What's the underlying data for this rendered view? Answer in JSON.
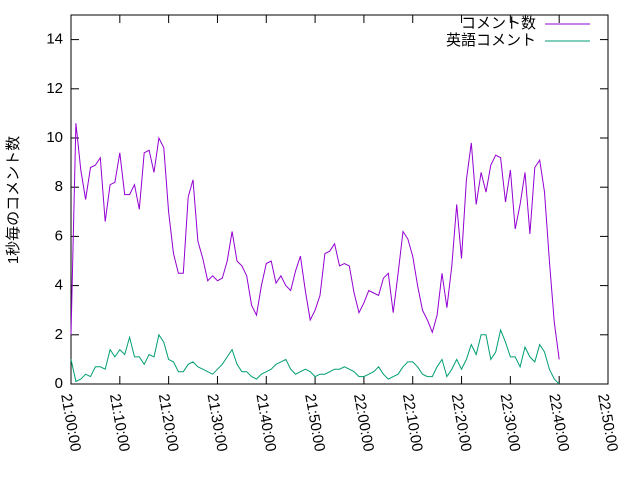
{
  "chart_data": {
    "type": "line",
    "ylabel": "1秒毎のコメント数",
    "x": [
      "21:00:00",
      "21:01:00",
      "21:02:00",
      "21:03:00",
      "21:04:00",
      "21:05:00",
      "21:06:00",
      "21:07:00",
      "21:08:00",
      "21:09:00",
      "21:10:00",
      "21:11:00",
      "21:12:00",
      "21:13:00",
      "21:14:00",
      "21:15:00",
      "21:16:00",
      "21:17:00",
      "21:18:00",
      "21:19:00",
      "21:20:00",
      "21:21:00",
      "21:22:00",
      "21:23:00",
      "21:24:00",
      "21:25:00",
      "21:26:00",
      "21:27:00",
      "21:28:00",
      "21:29:00",
      "21:30:00",
      "21:31:00",
      "21:32:00",
      "21:33:00",
      "21:34:00",
      "21:35:00",
      "21:36:00",
      "21:37:00",
      "21:38:00",
      "21:39:00",
      "21:40:00",
      "21:41:00",
      "21:42:00",
      "21:43:00",
      "21:44:00",
      "21:45:00",
      "21:46:00",
      "21:47:00",
      "21:48:00",
      "21:49:00",
      "21:50:00",
      "21:51:00",
      "21:52:00",
      "21:53:00",
      "21:54:00",
      "21:55:00",
      "21:56:00",
      "21:57:00",
      "21:58:00",
      "21:59:00",
      "22:00:00",
      "22:01:00",
      "22:02:00",
      "22:03:00",
      "22:04:00",
      "22:05:00",
      "22:06:00",
      "22:07:00",
      "22:08:00",
      "22:09:00",
      "22:10:00",
      "22:11:00",
      "22:12:00",
      "22:13:00",
      "22:14:00",
      "22:15:00",
      "22:16:00",
      "22:17:00",
      "22:18:00",
      "22:19:00",
      "22:20:00",
      "22:21:00",
      "22:22:00",
      "22:23:00",
      "22:24:00",
      "22:25:00",
      "22:26:00",
      "22:27:00",
      "22:28:00",
      "22:29:00",
      "22:30:00",
      "22:31:00",
      "22:32:00",
      "22:33:00",
      "22:34:00",
      "22:35:00",
      "22:36:00",
      "22:37:00",
      "22:38:00",
      "22:39:00",
      "22:40:00"
    ],
    "series": [
      {
        "name": "コメント数",
        "color": "#9400d3",
        "values": [
          2.0,
          10.6,
          8.7,
          7.5,
          8.8,
          8.9,
          9.2,
          6.6,
          8.1,
          8.2,
          9.4,
          7.7,
          7.7,
          8.1,
          7.1,
          9.4,
          9.5,
          8.6,
          10.0,
          9.6,
          7.0,
          5.3,
          4.5,
          4.5,
          7.6,
          8.3,
          5.8,
          5.1,
          4.2,
          4.4,
          4.2,
          4.3,
          5.0,
          6.2,
          5.0,
          4.8,
          4.4,
          3.2,
          2.8,
          4.0,
          4.9,
          5.0,
          4.1,
          4.4,
          4.0,
          3.8,
          4.6,
          5.2,
          3.8,
          2.6,
          3.0,
          3.6,
          5.3,
          5.4,
          5.7,
          4.8,
          4.9,
          4.8,
          3.7,
          2.9,
          3.3,
          3.8,
          3.7,
          3.6,
          4.3,
          4.5,
          2.9,
          4.5,
          6.2,
          5.9,
          5.2,
          4.0,
          3.0,
          2.6,
          2.1,
          2.8,
          4.5,
          3.1,
          4.8,
          7.3,
          5.1,
          8.3,
          9.8,
          7.3,
          8.6,
          7.8,
          8.9,
          9.3,
          9.2,
          7.4,
          8.7,
          6.3,
          7.3,
          8.6,
          6.1,
          8.8,
          9.1,
          7.8,
          5.0,
          2.5,
          1.0
        ]
      },
      {
        "name": "英語コメント",
        "color": "#009e73",
        "values": [
          1.0,
          0.1,
          0.2,
          0.4,
          0.3,
          0.7,
          0.7,
          0.6,
          1.4,
          1.1,
          1.4,
          1.2,
          1.9,
          1.1,
          1.1,
          0.8,
          1.2,
          1.1,
          2.0,
          1.7,
          1.0,
          0.9,
          0.5,
          0.5,
          0.8,
          0.9,
          0.7,
          0.6,
          0.5,
          0.4,
          0.6,
          0.8,
          1.1,
          1.4,
          0.8,
          0.5,
          0.5,
          0.3,
          0.2,
          0.4,
          0.5,
          0.6,
          0.8,
          0.9,
          1.0,
          0.6,
          0.4,
          0.5,
          0.6,
          0.5,
          0.3,
          0.4,
          0.4,
          0.5,
          0.6,
          0.6,
          0.7,
          0.6,
          0.5,
          0.3,
          0.3,
          0.4,
          0.5,
          0.7,
          0.4,
          0.2,
          0.3,
          0.4,
          0.7,
          0.9,
          0.9,
          0.7,
          0.4,
          0.3,
          0.3,
          0.7,
          1.0,
          0.3,
          0.6,
          1.0,
          0.6,
          1.0,
          1.6,
          1.2,
          2.0,
          2.0,
          1.0,
          1.3,
          2.2,
          1.7,
          1.1,
          1.1,
          0.7,
          1.5,
          1.1,
          0.9,
          1.6,
          1.3,
          0.6,
          0.2,
          0.0
        ]
      }
    ],
    "xlim": [
      "21:00:00",
      "22:50:00"
    ],
    "xticks": [
      "21:00:00",
      "21:10:00",
      "21:20:00",
      "21:30:00",
      "21:40:00",
      "21:50:00",
      "22:00:00",
      "22:10:00",
      "22:20:00",
      "22:30:00",
      "22:40:00",
      "22:50:00"
    ],
    "ylim": [
      0,
      15
    ],
    "yticks": [
      0,
      2,
      4,
      6,
      8,
      10,
      12,
      14
    ],
    "legend": "top-right"
  }
}
